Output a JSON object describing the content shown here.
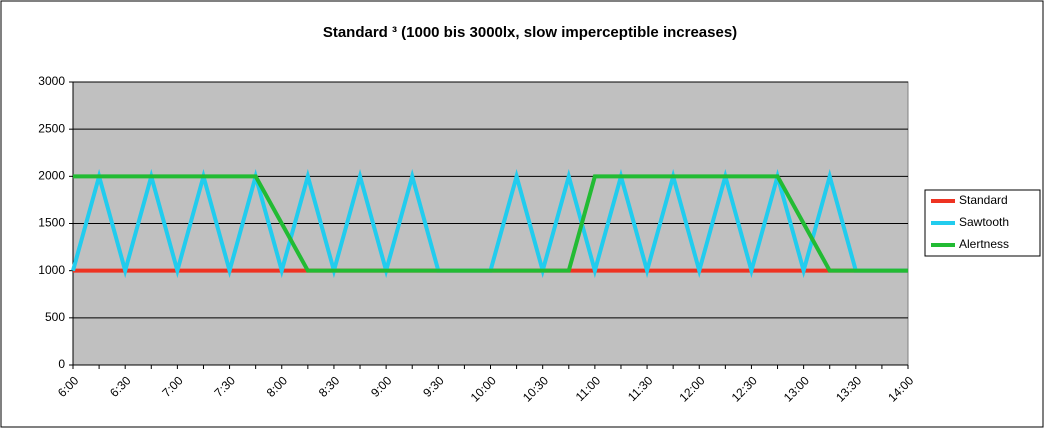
{
  "chart_data": {
    "type": "line",
    "title": "Standard ³ (1000 bis 3000lx, slow imperceptible increases)",
    "categories": [
      "6:00",
      null,
      "6:30",
      null,
      "7:00",
      null,
      "7:30",
      null,
      "8:00",
      null,
      "8:30",
      null,
      "9:00",
      null,
      "9:30",
      null,
      "10:00",
      null,
      "10:30",
      null,
      "11:00",
      null,
      "11:30",
      null,
      "12:00",
      null,
      "12:30",
      null,
      "13:00",
      null,
      "13:30",
      null,
      "14:00"
    ],
    "series": [
      {
        "name": "Standard",
        "color": "#ee3322",
        "values": [
          1000,
          1000,
          1000,
          1000,
          1000,
          1000,
          1000,
          1000,
          1000,
          1000,
          1000,
          1000,
          1000,
          1000,
          1000,
          1000,
          1000,
          1000,
          1000,
          1000,
          1000,
          1000,
          1000,
          1000,
          1000,
          1000,
          1000,
          1000,
          1000,
          1000,
          1000,
          1000,
          1000
        ]
      },
      {
        "name": "Sawtooth",
        "color": "#22ccee",
        "values": [
          1000,
          2000,
          1000,
          2000,
          1000,
          2000,
          1000,
          2000,
          1000,
          2000,
          1000,
          2000,
          1000,
          2000,
          1000,
          1000,
          1000,
          2000,
          1000,
          2000,
          1000,
          2000,
          1000,
          2000,
          1000,
          2000,
          1000,
          2000,
          1000,
          2000,
          1000,
          1000,
          1000
        ]
      },
      {
        "name": "Alertness",
        "color": "#22bb33",
        "values": [
          2000,
          2000,
          2000,
          2000,
          2000,
          2000,
          2000,
          2000,
          1500,
          1000,
          1000,
          1000,
          1000,
          1000,
          1000,
          1000,
          1000,
          1000,
          1000,
          1000,
          2000,
          2000,
          2000,
          2000,
          2000,
          2000,
          2000,
          2000,
          1500,
          1000,
          1000,
          1000,
          1000
        ]
      }
    ],
    "ylim": [
      0,
      3000
    ],
    "yticks": [
      0,
      500,
      1000,
      1500,
      2000,
      2500,
      3000
    ],
    "grid": true,
    "legend": "right"
  }
}
